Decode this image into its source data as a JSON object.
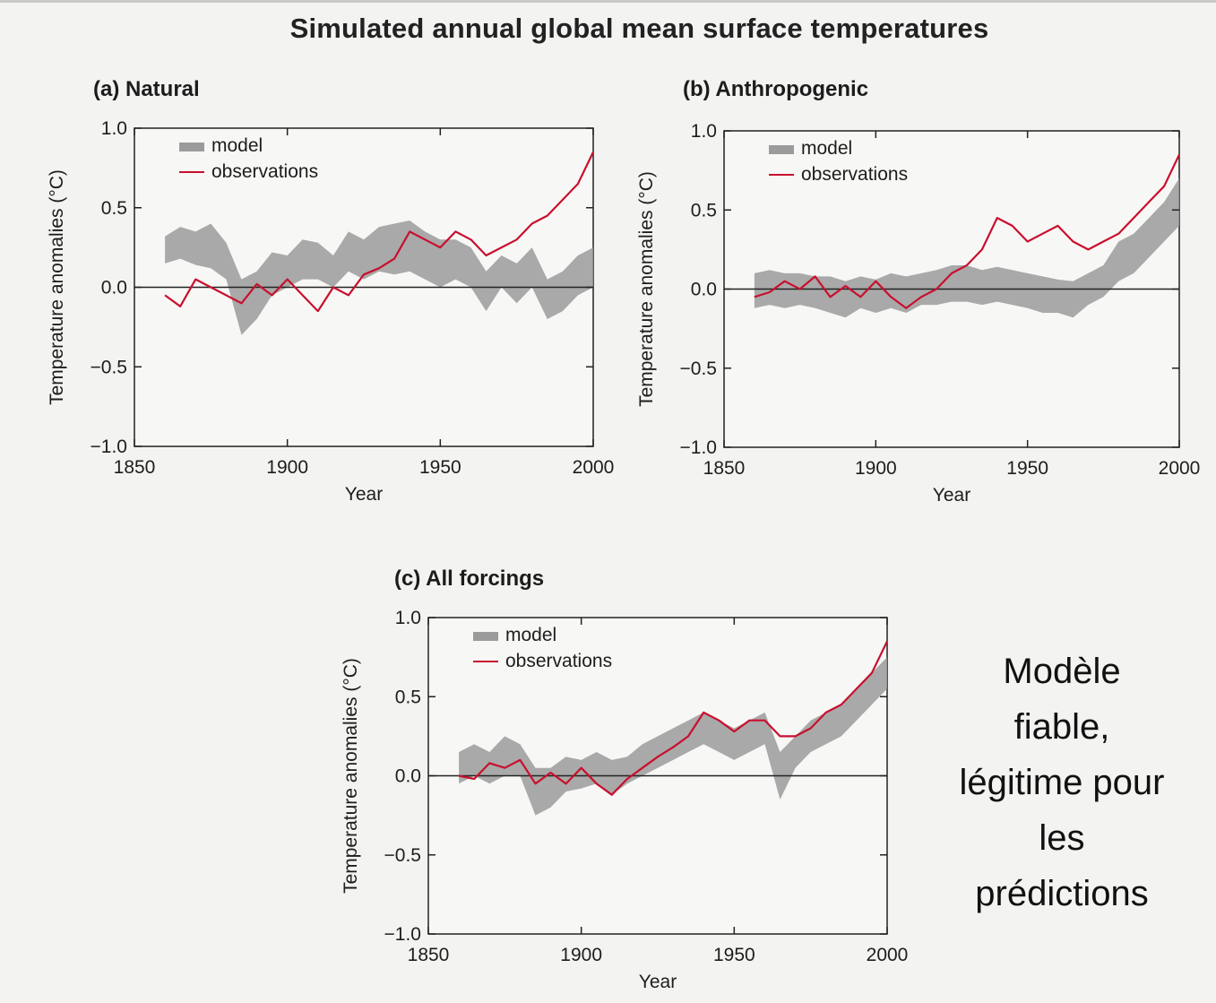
{
  "title": "Simulated annual global mean surface temperatures",
  "side_note": [
    "Modèle",
    "fiable,",
    "légitime pour",
    "les",
    "prédictions"
  ],
  "colors": {
    "model": "#9b9b9b",
    "observations": "#c8102e",
    "axis": "#222222"
  },
  "chart_data": [
    {
      "type": "area",
      "panel_label": "(a) Natural",
      "xlabel": "Year",
      "ylabel": "Temperature anomalies (°C)",
      "xlim": [
        1850,
        2000
      ],
      "ylim": [
        -1.0,
        1.0
      ],
      "xticks": [
        1850,
        1900,
        1950,
        2000
      ],
      "yticks": [
        "1.0",
        "0.5",
        "0.0",
        "−0.5",
        "−1.0"
      ],
      "legend": {
        "position": "top-left",
        "entries": [
          "model",
          "observations"
        ]
      },
      "x": [
        1860,
        1865,
        1870,
        1875,
        1880,
        1885,
        1890,
        1895,
        1900,
        1905,
        1910,
        1915,
        1920,
        1925,
        1930,
        1935,
        1940,
        1945,
        1950,
        1955,
        1960,
        1965,
        1970,
        1975,
        1980,
        1985,
        1990,
        1995,
        2000
      ],
      "series": [
        {
          "name": "model",
          "kind": "band",
          "lower": [
            0.15,
            0.18,
            0.14,
            0.12,
            0.05,
            -0.3,
            -0.2,
            -0.05,
            0.0,
            0.05,
            0.05,
            0.0,
            0.1,
            0.05,
            0.1,
            0.08,
            0.1,
            0.05,
            0.0,
            0.05,
            0.0,
            -0.15,
            0.0,
            -0.1,
            0.0,
            -0.2,
            -0.15,
            -0.05,
            0.0
          ],
          "upper": [
            0.32,
            0.38,
            0.35,
            0.4,
            0.28,
            0.05,
            0.1,
            0.22,
            0.2,
            0.3,
            0.28,
            0.2,
            0.35,
            0.3,
            0.38,
            0.4,
            0.42,
            0.35,
            0.3,
            0.3,
            0.25,
            0.1,
            0.2,
            0.15,
            0.25,
            0.05,
            0.1,
            0.2,
            0.25
          ]
        },
        {
          "name": "observations",
          "kind": "line",
          "values": [
            -0.05,
            -0.12,
            0.05,
            0.0,
            -0.05,
            -0.1,
            0.02,
            -0.05,
            0.05,
            -0.05,
            -0.15,
            0.0,
            -0.05,
            0.08,
            0.12,
            0.18,
            0.35,
            0.3,
            0.25,
            0.35,
            0.3,
            0.2,
            0.25,
            0.3,
            0.4,
            0.45,
            0.55,
            0.65,
            0.85
          ]
        }
      ]
    },
    {
      "type": "area",
      "panel_label": "(b) Anthropogenic",
      "xlabel": "Year",
      "ylabel": "Temperature anomalies (°C)",
      "xlim": [
        1850,
        2000
      ],
      "ylim": [
        -1.0,
        1.0
      ],
      "xticks": [
        1850,
        1900,
        1950,
        2000
      ],
      "yticks": [
        "1.0",
        "0.5",
        "0.0",
        "−0.5",
        "−1.0"
      ],
      "legend": {
        "position": "top-left",
        "entries": [
          "model",
          "observations"
        ]
      },
      "x": [
        1860,
        1865,
        1870,
        1875,
        1880,
        1885,
        1890,
        1895,
        1900,
        1905,
        1910,
        1915,
        1920,
        1925,
        1930,
        1935,
        1940,
        1945,
        1950,
        1955,
        1960,
        1965,
        1970,
        1975,
        1980,
        1985,
        1990,
        1995,
        2000
      ],
      "series": [
        {
          "name": "model",
          "kind": "band",
          "lower": [
            -0.12,
            -0.1,
            -0.12,
            -0.1,
            -0.12,
            -0.15,
            -0.18,
            -0.12,
            -0.15,
            -0.12,
            -0.15,
            -0.1,
            -0.1,
            -0.08,
            -0.08,
            -0.1,
            -0.08,
            -0.1,
            -0.12,
            -0.15,
            -0.15,
            -0.18,
            -0.1,
            -0.05,
            0.05,
            0.1,
            0.2,
            0.3,
            0.4
          ],
          "upper": [
            0.1,
            0.12,
            0.1,
            0.1,
            0.08,
            0.08,
            0.05,
            0.08,
            0.06,
            0.1,
            0.08,
            0.1,
            0.12,
            0.15,
            0.15,
            0.12,
            0.14,
            0.12,
            0.1,
            0.08,
            0.06,
            0.05,
            0.1,
            0.15,
            0.3,
            0.35,
            0.45,
            0.55,
            0.7
          ]
        },
        {
          "name": "observations",
          "kind": "line",
          "values": [
            -0.05,
            -0.02,
            0.05,
            0.0,
            0.08,
            -0.05,
            0.02,
            -0.05,
            0.05,
            -0.05,
            -0.12,
            -0.05,
            0.0,
            0.1,
            0.15,
            0.25,
            0.45,
            0.4,
            0.3,
            0.35,
            0.4,
            0.3,
            0.25,
            0.3,
            0.35,
            0.45,
            0.55,
            0.65,
            0.85
          ]
        }
      ]
    },
    {
      "type": "area",
      "panel_label": "(c) All forcings",
      "xlabel": "Year",
      "ylabel": "Temperature anomalies (°C)",
      "xlim": [
        1850,
        2000
      ],
      "ylim": [
        -1.0,
        1.0
      ],
      "xticks": [
        1850,
        1900,
        1950,
        2000
      ],
      "yticks": [
        "1.0",
        "0.5",
        "0.0",
        "−0.5",
        "−1.0"
      ],
      "legend": {
        "position": "top-left",
        "entries": [
          "model",
          "observations"
        ]
      },
      "x": [
        1860,
        1865,
        1870,
        1875,
        1880,
        1885,
        1890,
        1895,
        1900,
        1905,
        1910,
        1915,
        1920,
        1925,
        1930,
        1935,
        1940,
        1945,
        1950,
        1955,
        1960,
        1965,
        1970,
        1975,
        1980,
        1985,
        1990,
        1995,
        2000
      ],
      "series": [
        {
          "name": "model",
          "kind": "band",
          "lower": [
            -0.05,
            0.0,
            -0.05,
            0.0,
            0.0,
            -0.25,
            -0.2,
            -0.1,
            -0.08,
            -0.05,
            -0.12,
            -0.05,
            0.0,
            0.05,
            0.1,
            0.15,
            0.2,
            0.15,
            0.1,
            0.15,
            0.2,
            -0.15,
            0.05,
            0.15,
            0.2,
            0.25,
            0.35,
            0.45,
            0.55
          ],
          "upper": [
            0.15,
            0.2,
            0.15,
            0.25,
            0.2,
            0.05,
            0.05,
            0.12,
            0.1,
            0.15,
            0.1,
            0.12,
            0.2,
            0.25,
            0.3,
            0.35,
            0.4,
            0.35,
            0.3,
            0.35,
            0.4,
            0.15,
            0.25,
            0.35,
            0.4,
            0.45,
            0.55,
            0.65,
            0.75
          ]
        },
        {
          "name": "observations",
          "kind": "line",
          "values": [
            0.0,
            -0.02,
            0.08,
            0.05,
            0.1,
            -0.05,
            0.02,
            -0.05,
            0.05,
            -0.05,
            -0.12,
            -0.02,
            0.05,
            0.12,
            0.18,
            0.25,
            0.4,
            0.35,
            0.28,
            0.35,
            0.35,
            0.25,
            0.25,
            0.3,
            0.4,
            0.45,
            0.55,
            0.65,
            0.85
          ]
        }
      ]
    }
  ]
}
